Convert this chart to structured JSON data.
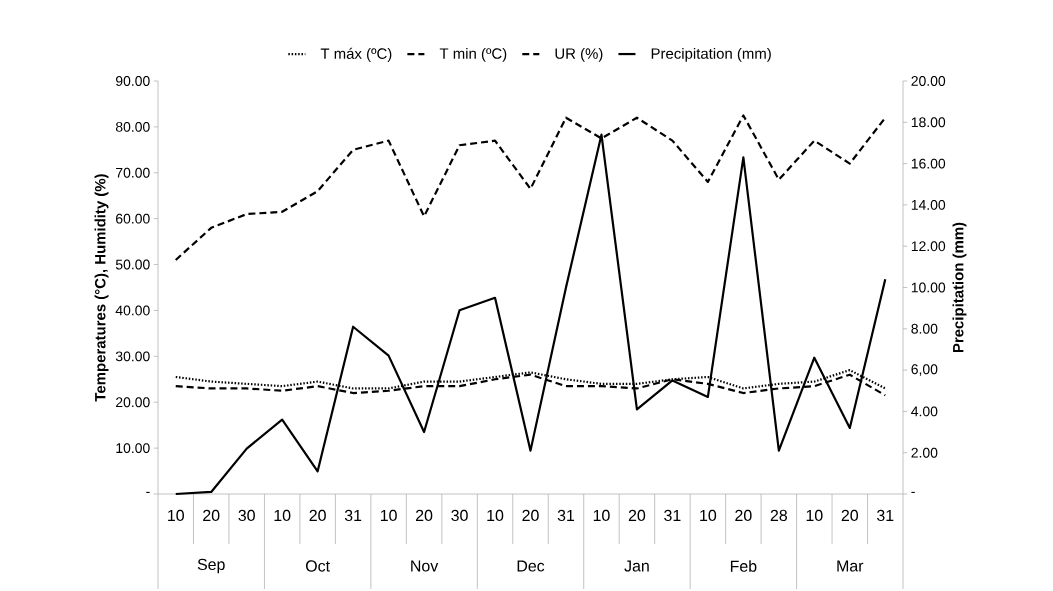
{
  "chart_data": {
    "type": "line",
    "categories": [
      "10",
      "20",
      "30",
      "10",
      "20",
      "31",
      "10",
      "20",
      "30",
      "10",
      "20",
      "31",
      "10",
      "20",
      "31",
      "10",
      "20",
      "28",
      "10",
      "20",
      "31"
    ],
    "annotations": [
      "Sep",
      "Oct",
      "Nov",
      "Dec",
      "Jan",
      "Feb",
      "Mar"
    ],
    "ylabel": "Temperatures (°C), Humidity (%)",
    "y2label": "Precipitation (mm)",
    "ylim": [
      0,
      90
    ],
    "yticks": [
      {
        "value": 0,
        "label": "-"
      },
      {
        "value": 10,
        "label": "10.00"
      },
      {
        "value": 20,
        "label": "20.00"
      },
      {
        "value": 30,
        "label": "30.00"
      },
      {
        "value": 40,
        "label": "40.00"
      },
      {
        "value": 50,
        "label": "50.00"
      },
      {
        "value": 60,
        "label": "60.00"
      },
      {
        "value": 70,
        "label": "70.00"
      },
      {
        "value": 80,
        "label": "80.00"
      },
      {
        "value": 90,
        "label": "90.00"
      }
    ],
    "y2lim": [
      0,
      20
    ],
    "y2ticks": [
      {
        "value": 0,
        "label": "-"
      },
      {
        "value": 2,
        "label": "2.00"
      },
      {
        "value": 4,
        "label": "4.00"
      },
      {
        "value": 6,
        "label": "6,00"
      },
      {
        "value": 8,
        "label": "8.00"
      },
      {
        "value": 10,
        "label": "10.00"
      },
      {
        "value": 12,
        "label": "12.00"
      },
      {
        "value": 14,
        "label": "14.00"
      },
      {
        "value": 16,
        "label": "16.00"
      },
      {
        "value": 18,
        "label": "18.00"
      },
      {
        "value": 20,
        "label": "20.00"
      }
    ],
    "legend": "top",
    "grid": false,
    "marker": "none",
    "series": [
      {
        "name": "T máx (ºC)",
        "color": "#000000",
        "line_style": "dotted",
        "values": [
          25.5,
          24.5,
          24,
          23.5,
          24.5,
          23,
          23,
          24.5,
          24.5,
          25.5,
          26.5,
          25,
          24,
          24,
          25,
          25.5,
          23,
          24,
          24.5,
          27,
          23
        ]
      },
      {
        "name": "T min (ºC)",
        "color": "#000000",
        "line_style": "dashed",
        "values": [
          23.5,
          23,
          23,
          22.5,
          23.5,
          22,
          22.5,
          23.5,
          23.5,
          25,
          26,
          23.5,
          23.5,
          23,
          25,
          24,
          22,
          23,
          23.5,
          26,
          21.5
        ]
      },
      {
        "name": "UR (%)",
        "color": "#000000",
        "line_style": "dashed",
        "values": [
          51,
          58,
          61,
          61.5,
          66,
          75,
          77,
          60.5,
          76,
          77,
          66.5,
          82,
          77.5,
          82,
          77,
          68,
          82.5,
          68.5,
          77,
          72,
          82
        ]
      },
      {
        "name": "Precipitation (mm)",
        "color": "#000000",
        "line_style": "solid",
        "axis": "y2",
        "values": [
          0,
          0.1,
          2.2,
          3.6,
          1.1,
          8.1,
          6.7,
          3.0,
          8.9,
          9.5,
          2.1,
          10.0,
          17.4,
          4.1,
          5.5,
          4.7,
          16.3,
          2.1,
          6.6,
          3.2,
          10.4
        ]
      }
    ]
  }
}
